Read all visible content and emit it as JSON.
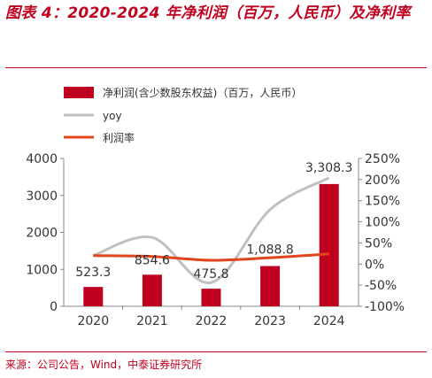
{
  "title": "图表 4：2020-2024 年净利润（百万，人民币）及净利率",
  "source": "来源：公司公告，Wind，中泰证券研究所",
  "colors": {
    "bar": "#c0001f",
    "yoy": "#c0c0c0",
    "margin": "#e0451b",
    "title": "#c0001f"
  },
  "chart_data": {
    "type": "bar",
    "categories": [
      "2020",
      "2021",
      "2022",
      "2023",
      "2024"
    ],
    "series": [
      {
        "name": "净利润(含少数股东权益)（百万，人民币）",
        "type": "bar",
        "axis": "left",
        "values": [
          523.3,
          854.6,
          475.8,
          1088.8,
          3308.3
        ]
      },
      {
        "name": "yoy",
        "type": "line",
        "axis": "right",
        "values": [
          0.2,
          0.63,
          -0.44,
          1.29,
          2.04
        ]
      },
      {
        "name": "利润率",
        "type": "line",
        "axis": "right",
        "values": [
          0.2,
          0.18,
          0.09,
          0.15,
          0.24
        ]
      }
    ],
    "data_labels": [
      "523.3",
      "854.6",
      "475.8",
      "1,088.8",
      "3,308.3"
    ],
    "left_axis": {
      "ylim": [
        0,
        4000
      ],
      "ticks": [
        "0",
        "1000",
        "2000",
        "3000",
        "4000"
      ]
    },
    "right_axis": {
      "ylim": [
        -1.0,
        2.5
      ],
      "ticks": [
        "-100%",
        "-50%",
        "0%",
        "50%",
        "100%",
        "150%",
        "200%",
        "250%"
      ]
    },
    "legend": {
      "placement": "top-left"
    },
    "grid": false
  }
}
